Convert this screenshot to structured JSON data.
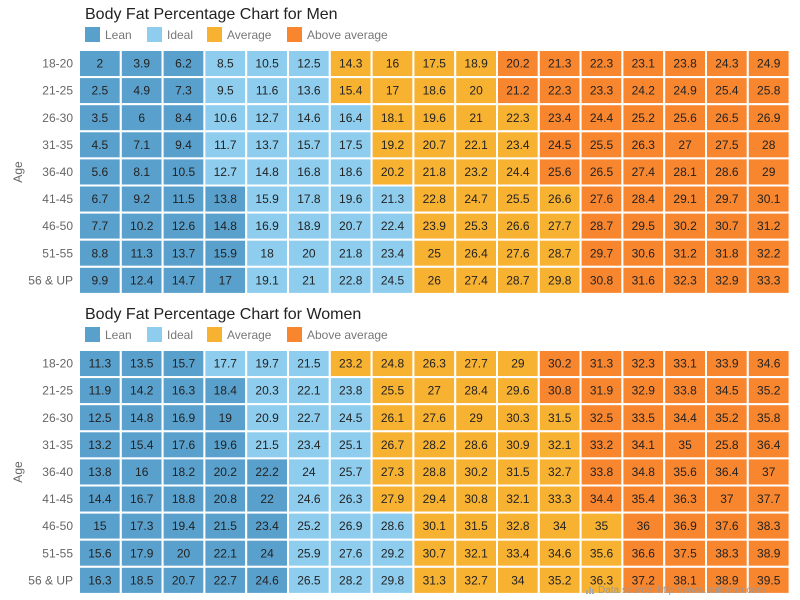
{
  "chart_data": [
    {
      "type": "heatmap",
      "title": "Body Fat Percentage Chart for Men",
      "ylabel": "Age",
      "legend": {
        "placement": "top-left",
        "items": [
          {
            "label": "Lean",
            "color": "#5aa0cc"
          },
          {
            "label": "Ideal",
            "color": "#8ecdee"
          },
          {
            "label": "Average",
            "color": "#f8b232"
          },
          {
            "label": "Above average",
            "color": "#f8862f"
          }
        ]
      },
      "rows": [
        "18-20",
        "21-25",
        "26-30",
        "31-35",
        "36-40",
        "41-45",
        "46-50",
        "51-55",
        "56 & UP"
      ],
      "values": [
        [
          2,
          3.9,
          6.2,
          8.5,
          10.5,
          12.5,
          14.3,
          16,
          17.5,
          18.9,
          20.2,
          21.3,
          22.3,
          23.1,
          23.8,
          24.3,
          24.9
        ],
        [
          2.5,
          4.9,
          7.3,
          9.5,
          11.6,
          13.6,
          15.4,
          17,
          18.6,
          20,
          21.2,
          22.3,
          23.3,
          24.2,
          24.9,
          25.4,
          25.8
        ],
        [
          3.5,
          6,
          8.4,
          10.6,
          12.7,
          14.6,
          16.4,
          18.1,
          19.6,
          21,
          22.3,
          23.4,
          24.4,
          25.2,
          25.6,
          26.5,
          26.9
        ],
        [
          4.5,
          7.1,
          9.4,
          11.7,
          13.7,
          15.7,
          17.5,
          19.2,
          20.7,
          22.1,
          23.4,
          24.5,
          25.5,
          26.3,
          27,
          27.5,
          28
        ],
        [
          5.6,
          8.1,
          10.5,
          12.7,
          14.8,
          16.8,
          18.6,
          20.2,
          21.8,
          23.2,
          24.4,
          25.6,
          26.5,
          27.4,
          28.1,
          28.6,
          29
        ],
        [
          6.7,
          9.2,
          11.5,
          13.8,
          15.9,
          17.8,
          19.6,
          21.3,
          22.8,
          24.7,
          25.5,
          26.6,
          27.6,
          28.4,
          29.1,
          29.7,
          30.1
        ],
        [
          7.7,
          10.2,
          12.6,
          14.8,
          16.9,
          18.9,
          20.7,
          22.4,
          23.9,
          25.3,
          26.6,
          27.7,
          28.7,
          29.5,
          30.2,
          30.7,
          31.2
        ],
        [
          8.8,
          11.3,
          13.7,
          15.9,
          18,
          20,
          21.8,
          23.4,
          25,
          26.4,
          27.6,
          28.7,
          29.7,
          30.6,
          31.2,
          31.8,
          32.2
        ],
        [
          9.9,
          12.4,
          14.7,
          17,
          19.1,
          21,
          22.8,
          24.5,
          26,
          27.4,
          28.7,
          29.8,
          30.8,
          31.6,
          32.3,
          32.9,
          33.3
        ]
      ],
      "categories": [
        [
          "Lean",
          "Lean",
          "Lean",
          "Ideal",
          "Ideal",
          "Ideal",
          "Average",
          "Average",
          "Average",
          "Average",
          "Above average",
          "Above average",
          "Above average",
          "Above average",
          "Above average",
          "Above average",
          "Above average"
        ],
        [
          "Lean",
          "Lean",
          "Lean",
          "Ideal",
          "Ideal",
          "Ideal",
          "Average",
          "Average",
          "Average",
          "Average",
          "Above average",
          "Above average",
          "Above average",
          "Above average",
          "Above average",
          "Above average",
          "Above average"
        ],
        [
          "Lean",
          "Lean",
          "Lean",
          "Ideal",
          "Ideal",
          "Ideal",
          "Ideal",
          "Average",
          "Average",
          "Average",
          "Average",
          "Above average",
          "Above average",
          "Above average",
          "Above average",
          "Above average",
          "Above average"
        ],
        [
          "Lean",
          "Lean",
          "Lean",
          "Ideal",
          "Ideal",
          "Ideal",
          "Ideal",
          "Average",
          "Average",
          "Average",
          "Average",
          "Above average",
          "Above average",
          "Above average",
          "Above average",
          "Above average",
          "Above average"
        ],
        [
          "Lean",
          "Lean",
          "Lean",
          "Ideal",
          "Ideal",
          "Ideal",
          "Ideal",
          "Average",
          "Average",
          "Average",
          "Average",
          "Above average",
          "Above average",
          "Above average",
          "Above average",
          "Above average",
          "Above average"
        ],
        [
          "Lean",
          "Lean",
          "Lean",
          "Lean",
          "Ideal",
          "Ideal",
          "Ideal",
          "Ideal",
          "Average",
          "Average",
          "Average",
          "Average",
          "Above average",
          "Above average",
          "Above average",
          "Above average",
          "Above average"
        ],
        [
          "Lean",
          "Lean",
          "Lean",
          "Lean",
          "Ideal",
          "Ideal",
          "Ideal",
          "Ideal",
          "Average",
          "Average",
          "Average",
          "Average",
          "Above average",
          "Above average",
          "Above average",
          "Above average",
          "Above average"
        ],
        [
          "Lean",
          "Lean",
          "Lean",
          "Lean",
          "Ideal",
          "Ideal",
          "Ideal",
          "Ideal",
          "Average",
          "Average",
          "Average",
          "Average",
          "Above average",
          "Above average",
          "Above average",
          "Above average",
          "Above average"
        ],
        [
          "Lean",
          "Lean",
          "Lean",
          "Lean",
          "Ideal",
          "Ideal",
          "Ideal",
          "Ideal",
          "Average",
          "Average",
          "Average",
          "Average",
          "Above average",
          "Above average",
          "Above average",
          "Above average",
          "Above average"
        ]
      ]
    },
    {
      "type": "heatmap",
      "title": "Body Fat Percentage Chart for Women",
      "ylabel": "Age",
      "legend": {
        "placement": "top-left",
        "items": [
          {
            "label": "Lean",
            "color": "#5aa0cc"
          },
          {
            "label": "Ideal",
            "color": "#8ecdee"
          },
          {
            "label": "Average",
            "color": "#f8b232"
          },
          {
            "label": "Above average",
            "color": "#f8862f"
          }
        ]
      },
      "rows": [
        "18-20",
        "21-25",
        "26-30",
        "31-35",
        "36-40",
        "41-45",
        "46-50",
        "51-55",
        "56 & UP"
      ],
      "values": [
        [
          11.3,
          13.5,
          15.7,
          17.7,
          19.7,
          21.5,
          23.2,
          24.8,
          26.3,
          27.7,
          29,
          30.2,
          31.3,
          32.3,
          33.1,
          33.9,
          34.6
        ],
        [
          11.9,
          14.2,
          16.3,
          18.4,
          20.3,
          22.1,
          23.8,
          25.5,
          27,
          28.4,
          29.6,
          30.8,
          31.9,
          32.9,
          33.8,
          34.5,
          35.2
        ],
        [
          12.5,
          14.8,
          16.9,
          19,
          20.9,
          22.7,
          24.5,
          26.1,
          27.6,
          29,
          30.3,
          31.5,
          32.5,
          33.5,
          34.4,
          35.2,
          35.8
        ],
        [
          13.2,
          15.4,
          17.6,
          19.6,
          21.5,
          23.4,
          25.1,
          26.7,
          28.2,
          28.6,
          30.9,
          32.1,
          33.2,
          34.1,
          35,
          25.8,
          36.4
        ],
        [
          13.8,
          16,
          18.2,
          20.2,
          22.2,
          24,
          25.7,
          27.3,
          28.8,
          30.2,
          31.5,
          32.7,
          33.8,
          34.8,
          35.6,
          36.4,
          37
        ],
        [
          14.4,
          16.7,
          18.8,
          20.8,
          22,
          24.6,
          26.3,
          27.9,
          29.4,
          30.8,
          32.1,
          33.3,
          34.4,
          35.4,
          36.3,
          37,
          37.7
        ],
        [
          15,
          17.3,
          19.4,
          21.5,
          23.4,
          25.2,
          26.9,
          28.6,
          30.1,
          31.5,
          32.8,
          34,
          35,
          36,
          36.9,
          37.6,
          38.3
        ],
        [
          15.6,
          17.9,
          20,
          22.1,
          24,
          25.9,
          27.6,
          29.2,
          30.7,
          32.1,
          33.4,
          34.6,
          35.6,
          36.6,
          37.5,
          38.3,
          38.9
        ],
        [
          16.3,
          18.5,
          20.7,
          22.7,
          24.6,
          26.5,
          28.2,
          29.8,
          31.3,
          32.7,
          34,
          35.2,
          36.3,
          37.2,
          38.1,
          38.9,
          39.5
        ]
      ],
      "categories": [
        [
          "Lean",
          "Lean",
          "Lean",
          "Ideal",
          "Ideal",
          "Ideal",
          "Average",
          "Average",
          "Average",
          "Average",
          "Average",
          "Above average",
          "Above average",
          "Above average",
          "Above average",
          "Above average",
          "Above average"
        ],
        [
          "Lean",
          "Lean",
          "Lean",
          "Lean",
          "Ideal",
          "Ideal",
          "Ideal",
          "Average",
          "Average",
          "Average",
          "Average",
          "Above average",
          "Above average",
          "Above average",
          "Above average",
          "Above average",
          "Above average"
        ],
        [
          "Lean",
          "Lean",
          "Lean",
          "Lean",
          "Ideal",
          "Ideal",
          "Ideal",
          "Average",
          "Average",
          "Average",
          "Average",
          "Average",
          "Above average",
          "Above average",
          "Above average",
          "Above average",
          "Above average"
        ],
        [
          "Lean",
          "Lean",
          "Lean",
          "Lean",
          "Ideal",
          "Ideal",
          "Ideal",
          "Average",
          "Average",
          "Average",
          "Average",
          "Average",
          "Above average",
          "Above average",
          "Above average",
          "Above average",
          "Above average"
        ],
        [
          "Lean",
          "Lean",
          "Lean",
          "Lean",
          "Lean",
          "Ideal",
          "Ideal",
          "Average",
          "Average",
          "Average",
          "Average",
          "Average",
          "Above average",
          "Above average",
          "Above average",
          "Above average",
          "Above average"
        ],
        [
          "Lean",
          "Lean",
          "Lean",
          "Lean",
          "Lean",
          "Ideal",
          "Ideal",
          "Average",
          "Average",
          "Average",
          "Average",
          "Average",
          "Above average",
          "Above average",
          "Above average",
          "Above average",
          "Above average"
        ],
        [
          "Lean",
          "Lean",
          "Lean",
          "Lean",
          "Lean",
          "Ideal",
          "Ideal",
          "Ideal",
          "Average",
          "Average",
          "Average",
          "Average",
          "Average",
          "Above average",
          "Above average",
          "Above average",
          "Above average"
        ],
        [
          "Lean",
          "Lean",
          "Lean",
          "Lean",
          "Lean",
          "Ideal",
          "Ideal",
          "Ideal",
          "Average",
          "Average",
          "Average",
          "Average",
          "Average",
          "Above average",
          "Above average",
          "Above average",
          "Above average"
        ],
        [
          "Lean",
          "Lean",
          "Lean",
          "Lean",
          "Lean",
          "Ideal",
          "Ideal",
          "Ideal",
          "Average",
          "Average",
          "Average",
          "Average",
          "Average",
          "Above average",
          "Above average",
          "Above average",
          "Above average"
        ]
      ]
    }
  ],
  "source_note": "Data source: http://www.builtlean.com",
  "colors": {
    "Lean": "#5aa0cc",
    "Ideal": "#8ecdee",
    "Average": "#f8b232",
    "Above average": "#f8862f"
  }
}
